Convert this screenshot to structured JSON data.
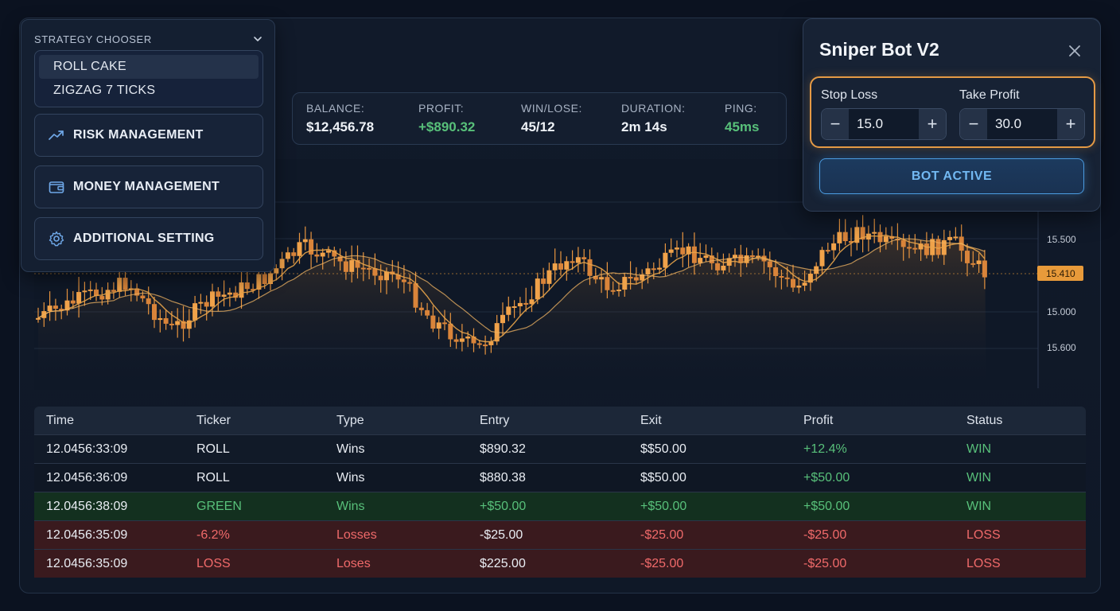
{
  "strategy": {
    "header": "STRATEGY CHOOSER",
    "options": [
      "ROLL CAKE",
      "ZIGZAG 7 TICKS"
    ],
    "selected_index": 0,
    "menu": [
      {
        "label": "RISK MANAGEMENT",
        "icon": "trend-icon"
      },
      {
        "label": "MONEY MANAGEMENT",
        "icon": "wallet-icon"
      },
      {
        "label": "ADDITIONAL SETTING",
        "icon": "gear-icon"
      }
    ]
  },
  "stats": {
    "balance_label": "BALANCE:",
    "balance": "$12,456.78",
    "profit_label": "PROFIT:",
    "profit": "+$890.32",
    "winlose_label": "WIN/LOSE:",
    "winlose": "45/12",
    "duration_label": "DURATION:",
    "duration": "2m 14s",
    "ping_label": "PING:",
    "ping": "45ms"
  },
  "bot": {
    "title": "Sniper Bot V2",
    "stop_loss_label": "Stop Loss",
    "stop_loss": "15.0",
    "take_profit_label": "Take Profit",
    "take_profit": "30.0",
    "status_button": "BOT ACTIVE"
  },
  "chart_data": {
    "type": "candlestick",
    "price_axis_labels": [
      "15.500",
      "15.000",
      "15.600"
    ],
    "current_price": "15.410",
    "colors": {
      "candle": "#e8953f",
      "ma": "#e8a44a",
      "tag": "#e89a3a"
    }
  },
  "table": {
    "headers": [
      "Time",
      "Ticker",
      "Type",
      "Entry",
      "Exit",
      "Profit",
      "Status"
    ],
    "rows": [
      {
        "kind": "odd",
        "time": "12.0456:33:09",
        "ticker": "ROLL",
        "type": "Wins",
        "entry": "$890.32",
        "exit": "$$50.00",
        "profit": "+12.4%",
        "status": "WIN"
      },
      {
        "kind": "even",
        "time": "12.0456:36:09",
        "ticker": "ROLL",
        "type": "Wins",
        "entry": "$880.38",
        "exit": "$$50.00",
        "profit": "+$50.00",
        "status": "WIN"
      },
      {
        "kind": "win",
        "time": "12.0456:38:09",
        "ticker": "GREEN",
        "type": "Wins",
        "entry": "+$50.00",
        "exit": "+$50.00",
        "profit": "+$50.00",
        "status": "WIN"
      },
      {
        "kind": "loss",
        "time": "12.0456:35:09",
        "ticker": "-6.2%",
        "type": "Losses",
        "entry": "-$25.00",
        "exit": "-$25.00",
        "profit": "-$25.00",
        "status": "LOSS"
      },
      {
        "kind": "loss",
        "time": "12.0456:35:09",
        "ticker": "LOSS",
        "type": "Loses",
        "entry": "$225.00",
        "exit": "-$25.00",
        "profit": "-$25.00",
        "status": "LOSS"
      }
    ]
  }
}
